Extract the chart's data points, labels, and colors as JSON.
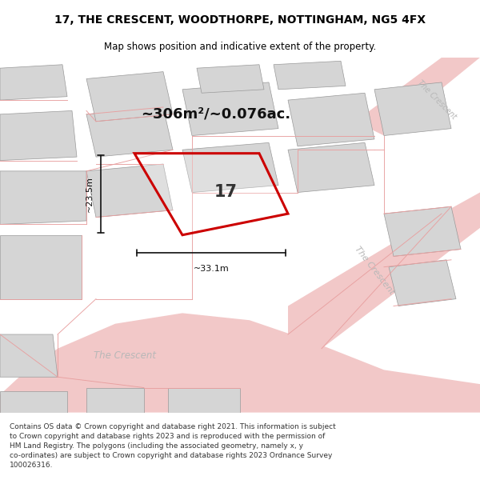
{
  "title": "17, THE CRESCENT, WOODTHORPE, NOTTINGHAM, NG5 4FX",
  "subtitle": "Map shows position and indicative extent of the property.",
  "area_text": "~306m²/~0.076ac.",
  "dim_width": "~33.1m",
  "dim_height": "~23.5m",
  "plot_label": "17",
  "footer_text": "Contains OS data © Crown copyright and database right 2021. This information is subject\nto Crown copyright and database rights 2023 and is reproduced with the permission of\nHM Land Registry. The polygons (including the associated geometry, namely x, y\nco-ordinates) are subject to Crown copyright and database rights 2023 Ordnance Survey\n100026316.",
  "map_bg": "#ebebeb",
  "road_color": "#f2c8c8",
  "road_line_color": "#e8a0a0",
  "building_fill": "#d5d5d5",
  "building_edge": "#999999",
  "plot_edge_color": "#cc0000",
  "dim_color": "#111111",
  "road_label_color": "#b8b8b8",
  "street_name": "The Crescent",
  "title_fontsize": 10,
  "subtitle_fontsize": 8.5,
  "footer_fontsize": 6.5,
  "area_fontsize": 13,
  "label_fontsize": 15
}
